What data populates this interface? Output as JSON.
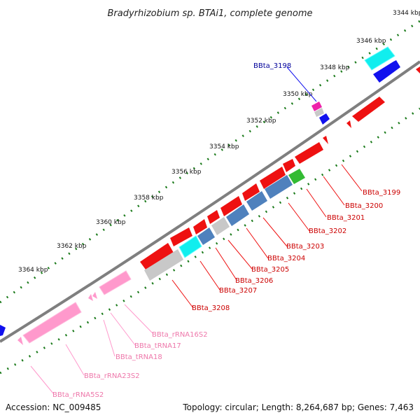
{
  "header": {
    "title": "Bradyrhizobium sp. BTAi1, complete genome"
  },
  "footer": {
    "accession": "Accession: NC_009485",
    "topology": "Topology: circular; Length: 8,264,687 bp; Genes: 7,463"
  },
  "colors": {
    "backbone": "#7f7f7f",
    "ruler_dots": "#1a7a1a",
    "red": "#ee1111",
    "blue": "#1111ee",
    "cyan": "#11eeee",
    "steel": "#4f81bd",
    "grey": "#c8c8c8",
    "green": "#33bb33",
    "magenta": "#ee22aa",
    "pink": "#ff99cc",
    "label_red": "#cc0000",
    "label_blue": "#000099",
    "label_pink": "#ee77aa"
  },
  "ticks": [
    {
      "label": "3344 kbp"
    },
    {
      "label": "3346 kbp"
    },
    {
      "label": "3348 kbp"
    },
    {
      "label": "3350 kbp"
    },
    {
      "label": "3352 kbp"
    },
    {
      "label": "3354 kbp"
    },
    {
      "label": "3356 kbp"
    },
    {
      "label": "3358 kbp"
    },
    {
      "label": "3360 kbp"
    },
    {
      "label": "3362 kbp"
    },
    {
      "label": "3364 kbp"
    }
  ],
  "labels": {
    "bbta_3198": "BBta_3198",
    "bbta_3199": "BBta_3199",
    "bbta_3200": "BBta_3200",
    "bbta_3201": "BBta_3201",
    "bbta_3202": "BBta_3202",
    "bbta_3203": "BBta_3203",
    "bbta_3204": "BBta_3204",
    "bbta_3205": "BBta_3205",
    "bbta_3206": "BBta_3206",
    "bbta_3207": "BBta_3207",
    "bbta_3208": "BBta_3208",
    "rrna16s": "BBta_rRNA16S2",
    "trna17": "BBta_tRNA17",
    "trna18": "BBta_tRNA18",
    "rrna23s": "BBta_rRNA23S2",
    "rrna5s": "BBta_rRNA5S2"
  }
}
